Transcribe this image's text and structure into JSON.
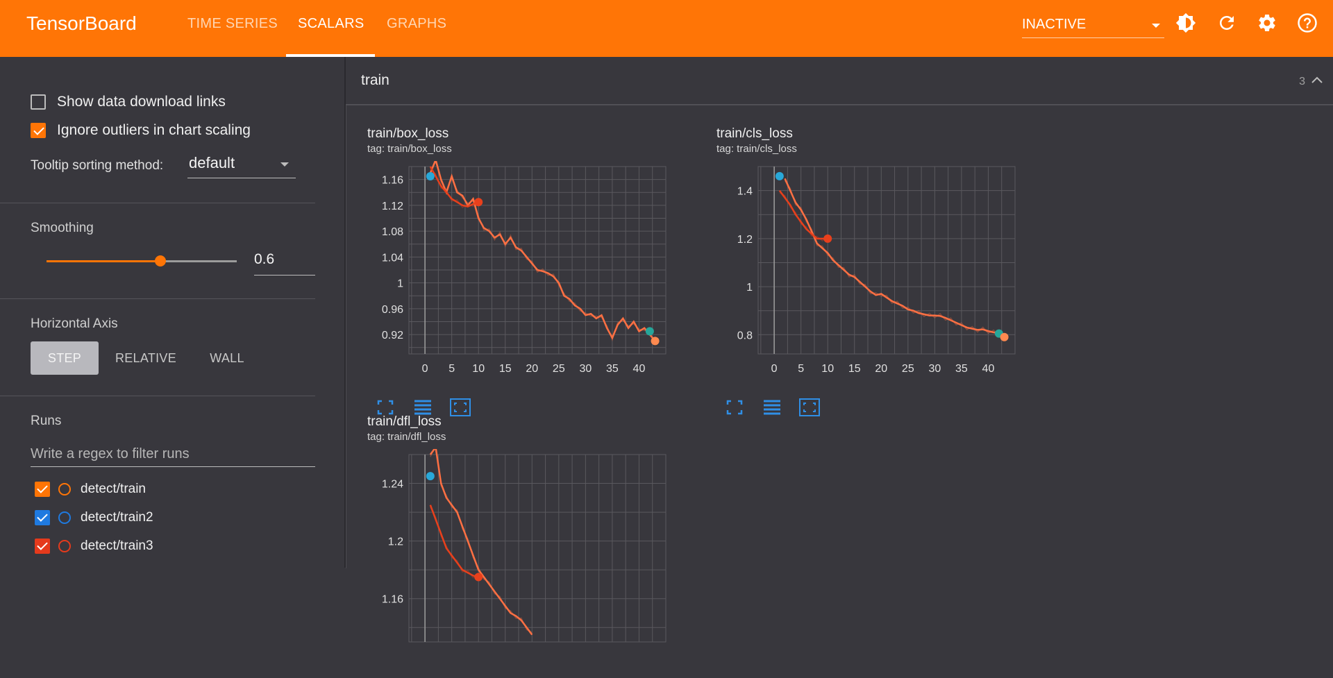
{
  "app": {
    "title": "TensorBoard"
  },
  "tabs": [
    {
      "label": "TIME SERIES",
      "active": false
    },
    {
      "label": "SCALARS",
      "active": true
    },
    {
      "label": "GRAPHS",
      "active": false
    }
  ],
  "run_status": {
    "value": "INACTIVE"
  },
  "top_icons": [
    "theme-toggle-icon",
    "refresh-icon",
    "settings-icon",
    "help-icon"
  ],
  "sidebar": {
    "show_download_links": {
      "label": "Show data download links",
      "checked": false
    },
    "ignore_outliers": {
      "label": "Ignore outliers in chart scaling",
      "checked": true
    },
    "tooltip_sort": {
      "label": "Tooltip sorting method:",
      "value": "default"
    },
    "smoothing": {
      "title": "Smoothing",
      "value": "0.6",
      "level": 0.6
    },
    "horizontal_axis": {
      "title": "Horizontal Axis",
      "options": [
        "STEP",
        "RELATIVE",
        "WALL"
      ],
      "selected": "STEP"
    },
    "runs": {
      "title": "Runs",
      "filter_placeholder": "Write a regex to filter runs",
      "items": [
        {
          "name": "detect/train",
          "color": "#ff7506",
          "checked": true
        },
        {
          "name": "detect/train2",
          "color": "#1f7ae0",
          "checked": true
        },
        {
          "name": "detect/train3",
          "color": "#e53a1c",
          "checked": true
        }
      ]
    }
  },
  "group": {
    "title": "train",
    "count": "3"
  },
  "colors": {
    "accent": "#ff7506",
    "train": "#ff7043",
    "train2": "#29a8d8",
    "train3": "#e8401c"
  },
  "chart_data": [
    {
      "type": "line",
      "title": "train/box_loss",
      "tag": "tag: train/box_loss",
      "xlim": [
        -3,
        45
      ],
      "ylim": [
        0.89,
        1.18
      ],
      "x_ticks": [
        0,
        5,
        10,
        15,
        20,
        25,
        30,
        35,
        40
      ],
      "y_ticks": [
        {
          "v": 1.16,
          "l": "1.16"
        },
        {
          "v": 1.12,
          "l": "1.12"
        },
        {
          "v": 1.08,
          "l": "1.08"
        },
        {
          "v": 1.04,
          "l": "1.04"
        },
        {
          "v": 1.0,
          "l": "1"
        },
        {
          "v": 0.96,
          "l": "0.96"
        },
        {
          "v": 0.92,
          "l": "0.92"
        }
      ],
      "series": [
        {
          "run": "detect/train",
          "x": [
            1,
            2,
            3,
            4,
            5,
            6,
            7,
            8,
            9,
            10,
            11,
            12,
            13,
            14,
            15,
            16,
            17,
            18,
            19,
            20,
            21,
            22,
            23,
            24,
            25,
            26,
            27,
            28,
            29,
            30,
            31,
            32,
            33,
            34,
            35,
            36,
            37,
            38,
            39,
            40,
            41,
            42,
            43
          ],
          "y": [
            1.17,
            1.19,
            1.16,
            1.14,
            1.165,
            1.14,
            1.135,
            1.12,
            1.13,
            1.1,
            1.085,
            1.08,
            1.07,
            1.075,
            1.06,
            1.07,
            1.055,
            1.05,
            1.04,
            1.03,
            1.02,
            1.018,
            1.015,
            1.01,
            1.0,
            0.98,
            0.975,
            0.965,
            0.96,
            0.95,
            0.952,
            0.945,
            0.95,
            0.93,
            0.915,
            0.935,
            0.945,
            0.93,
            0.94,
            0.925,
            0.93,
            0.92,
            0.91
          ]
        },
        {
          "run": "detect/train3",
          "x": [
            1,
            2,
            3,
            4,
            5,
            6,
            7,
            8,
            9,
            10
          ],
          "y": [
            1.18,
            1.165,
            1.15,
            1.14,
            1.13,
            1.125,
            1.12,
            1.118,
            1.122,
            1.125
          ]
        }
      ],
      "markers": [
        {
          "x": 1,
          "y": 1.165,
          "color": "#29a8d8"
        },
        {
          "x": 10,
          "y": 1.125,
          "color": "#e8401c"
        },
        {
          "x": 42,
          "y": 0.925,
          "color": "#26a69a"
        },
        {
          "x": 43,
          "y": 0.91,
          "color": "#ff8a50"
        }
      ]
    },
    {
      "type": "line",
      "title": "train/cls_loss",
      "tag": "tag: train/cls_loss",
      "xlim": [
        -3,
        45
      ],
      "ylim": [
        0.72,
        1.5
      ],
      "x_ticks": [
        0,
        5,
        10,
        15,
        20,
        25,
        30,
        35,
        40
      ],
      "y_ticks": [
        {
          "v": 1.4,
          "l": "1.4"
        },
        {
          "v": 1.2,
          "l": "1.2"
        },
        {
          "v": 1.0,
          "l": "1"
        },
        {
          "v": 0.8,
          "l": "0.8"
        }
      ],
      "series": [
        {
          "run": "detect/train",
          "x": [
            2,
            3,
            4,
            5,
            6,
            7,
            8,
            9,
            10,
            11,
            12,
            13,
            14,
            15,
            16,
            17,
            18,
            19,
            20,
            21,
            22,
            23,
            24,
            25,
            26,
            27,
            28,
            29,
            30,
            31,
            32,
            33,
            34,
            35,
            36,
            37,
            38,
            39,
            40,
            41,
            42,
            43
          ],
          "y": [
            1.45,
            1.4,
            1.35,
            1.32,
            1.28,
            1.23,
            1.18,
            1.16,
            1.14,
            1.11,
            1.09,
            1.07,
            1.05,
            1.04,
            1.02,
            1.0,
            0.98,
            0.965,
            0.97,
            0.955,
            0.94,
            0.93,
            0.92,
            0.905,
            0.9,
            0.89,
            0.885,
            0.88,
            0.88,
            0.878,
            0.87,
            0.86,
            0.85,
            0.84,
            0.83,
            0.825,
            0.82,
            0.822,
            0.815,
            0.81,
            0.805,
            0.79
          ]
        },
        {
          "run": "detect/train3",
          "x": [
            1,
            2,
            3,
            4,
            5,
            6,
            7,
            8,
            9,
            10
          ],
          "y": [
            1.4,
            1.37,
            1.34,
            1.3,
            1.27,
            1.24,
            1.22,
            1.2,
            1.2,
            1.2
          ]
        }
      ],
      "markers": [
        {
          "x": 1,
          "y": 1.46,
          "color": "#29a8d8"
        },
        {
          "x": 10,
          "y": 1.2,
          "color": "#e8401c"
        },
        {
          "x": 42,
          "y": 0.805,
          "color": "#26a69a"
        },
        {
          "x": 43,
          "y": 0.79,
          "color": "#ff8a50"
        }
      ]
    },
    {
      "type": "line",
      "title": "train/dfl_loss",
      "tag": "tag: train/dfl_loss",
      "xlim": [
        -3,
        45
      ],
      "ylim": [
        1.13,
        1.26
      ],
      "x_ticks": [],
      "y_ticks": [
        {
          "v": 1.24,
          "l": "1.24"
        },
        {
          "v": 1.2,
          "l": "1.2"
        },
        {
          "v": 1.16,
          "l": "1.16"
        }
      ],
      "series": [
        {
          "run": "detect/train",
          "x": [
            1,
            2,
            3,
            4,
            5,
            6,
            7,
            8,
            9,
            10,
            11,
            12,
            13,
            14,
            15,
            16,
            17,
            18,
            19,
            20
          ],
          "y": [
            1.26,
            1.265,
            1.24,
            1.23,
            1.225,
            1.22,
            1.21,
            1.2,
            1.19,
            1.18,
            1.175,
            1.17,
            1.165,
            1.16,
            1.155,
            1.15,
            1.148,
            1.145,
            1.14,
            1.135
          ]
        },
        {
          "run": "detect/train3",
          "x": [
            1,
            2,
            3,
            4,
            5,
            6,
            7,
            8,
            9,
            10
          ],
          "y": [
            1.225,
            1.215,
            1.205,
            1.195,
            1.19,
            1.185,
            1.18,
            1.178,
            1.176,
            1.175
          ]
        }
      ],
      "markers": [
        {
          "x": 1,
          "y": 1.245,
          "color": "#29a8d8"
        },
        {
          "x": 10,
          "y": 1.175,
          "color": "#e8401c"
        }
      ]
    }
  ]
}
